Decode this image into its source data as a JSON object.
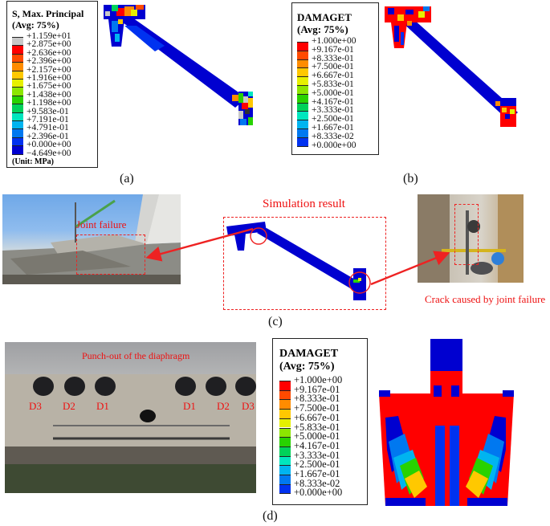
{
  "panel_a": {
    "legend_title_1": "S, Max. Principal",
    "legend_title_2": "(Avg: 75%)",
    "unit": "(Unit: MPa)",
    "entries": [
      {
        "label": "+1.159e+01",
        "color": "#c8c8c8"
      },
      {
        "label": "+2.875e+00",
        "color": "#ff0000"
      },
      {
        "label": "+2.636e+00",
        "color": "#ff4a00"
      },
      {
        "label": "+2.396e+00",
        "color": "#ff8c00"
      },
      {
        "label": "+2.157e+00",
        "color": "#ffc800"
      },
      {
        "label": "+1.916e+00",
        "color": "#e6f000"
      },
      {
        "label": "+1.675e+00",
        "color": "#8ce600"
      },
      {
        "label": "+1.438e+00",
        "color": "#28d200"
      },
      {
        "label": "+1.198e+00",
        "color": "#00d25a"
      },
      {
        "label": "+9.583e-01",
        "color": "#00e6be"
      },
      {
        "label": "+7.191e-01",
        "color": "#00b4f0"
      },
      {
        "label": "+4.791e-01",
        "color": "#0078f0"
      },
      {
        "label": "+2.396e-01",
        "color": "#0032f0"
      },
      {
        "label": "+0.000e+00",
        "color": "#0000d0"
      },
      {
        "label": "−4.649e+00",
        "color": "#303030"
      }
    ],
    "caption": "(a)"
  },
  "panel_b": {
    "legend_title_1": "DAMAGET",
    "legend_title_2": "(Avg: 75%)",
    "entries": [
      {
        "label": "+1.000e+00",
        "color": "#ff0000"
      },
      {
        "label": "+9.167e-01",
        "color": "#ff4a00"
      },
      {
        "label": "+8.333e-01",
        "color": "#ff8c00"
      },
      {
        "label": "+7.500e-01",
        "color": "#ffc800"
      },
      {
        "label": "+6.667e-01",
        "color": "#e6f000"
      },
      {
        "label": "+5.833e-01",
        "color": "#8ce600"
      },
      {
        "label": "+5.000e-01",
        "color": "#28d200"
      },
      {
        "label": "+4.167e-01",
        "color": "#00d25a"
      },
      {
        "label": "+3.333e-01",
        "color": "#00e6be"
      },
      {
        "label": "+2.500e-01",
        "color": "#00b4f0"
      },
      {
        "label": "+1.667e-01",
        "color": "#0078f0"
      },
      {
        "label": "+8.333e-02",
        "color": "#0032f0"
      },
      {
        "label": "+0.000e+00",
        "color": "#0000d0"
      }
    ],
    "caption": "(b)"
  },
  "panel_c": {
    "label_joint_failure": "Joint failure",
    "label_simulation": "Simulation result",
    "label_crack": "Crack caused by joint failure",
    "caption": "(c)"
  },
  "panel_d": {
    "label_punch": "Punch-out of the diaphragm",
    "diaphragm_labels": [
      "D3",
      "D2",
      "D1",
      "D1",
      "D2",
      "D3"
    ],
    "legend_title_1": "DAMAGET",
    "legend_title_2": "(Avg: 75%)",
    "caption": "(d)"
  }
}
